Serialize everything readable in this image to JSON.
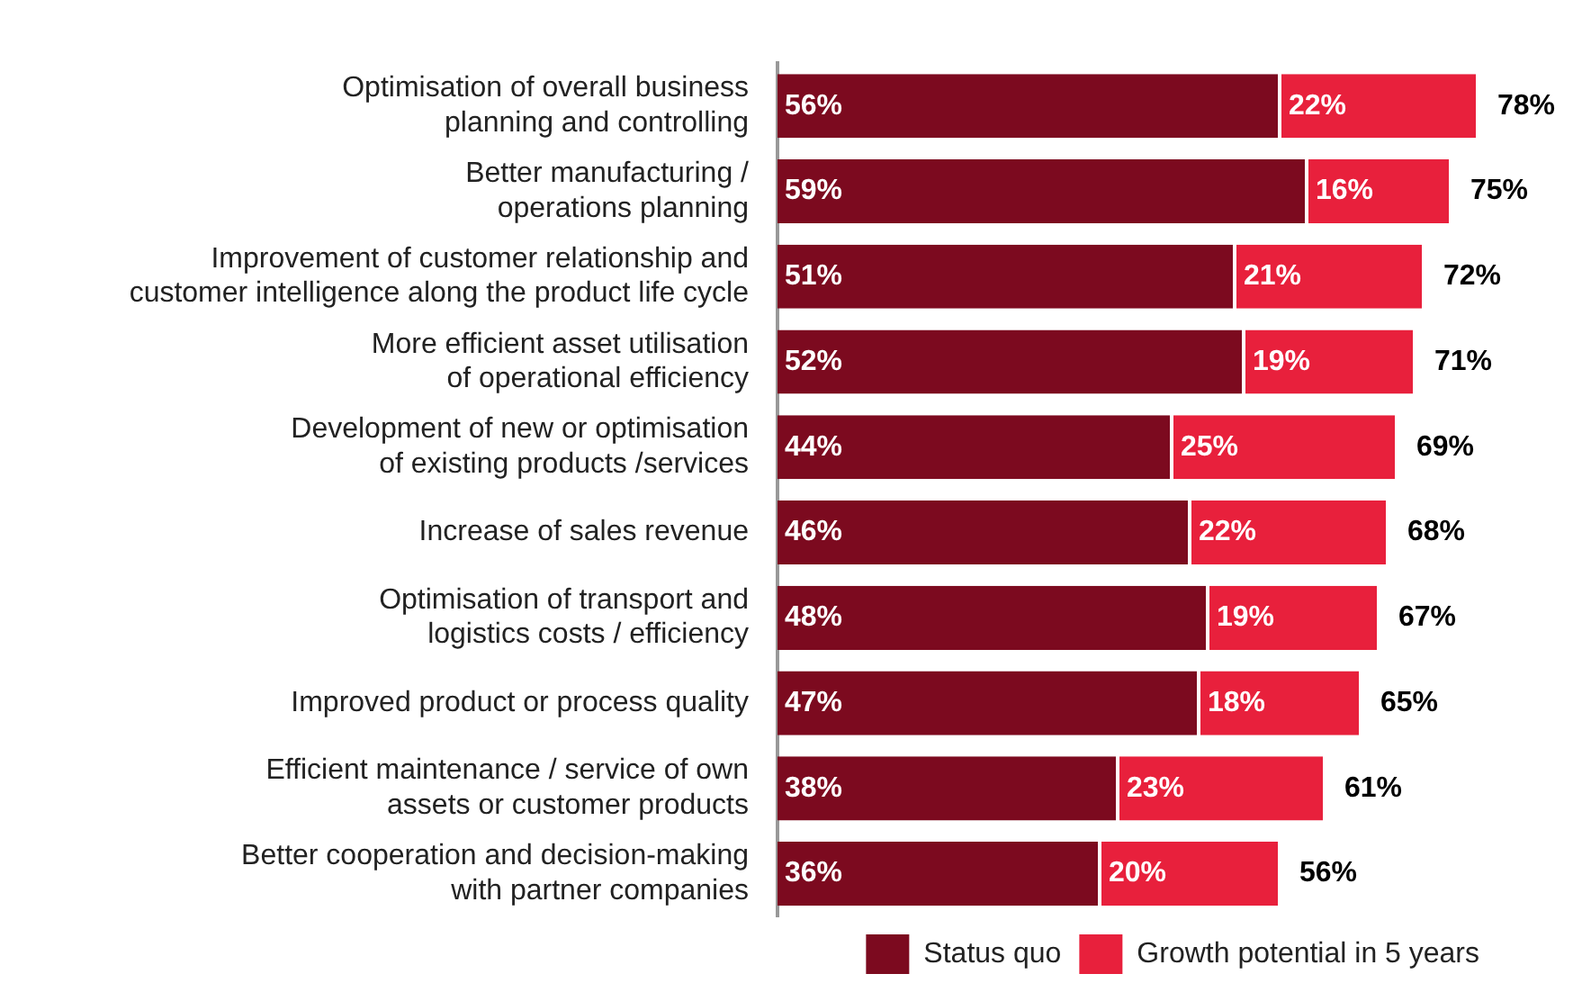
{
  "chart_data": {
    "type": "bar",
    "orientation": "horizontal",
    "stacked": true,
    "categories": [
      "Optimisation of overall business\nplanning and controlling",
      "Better manufacturing /\noperations planning",
      "Improvement of customer relationship and\ncustomer intelligence along the product life cycle",
      "More efficient asset utilisation\nof operational efficiency",
      "Development of new or optimisation\nof existing products /services",
      "Increase of sales revenue",
      "Optimisation of transport and\nlogistics costs / efficiency",
      "Improved product or process quality",
      "Efficient maintenance / service of own\nassets or customer products",
      "Better cooperation and decision-making\nwith partner companies"
    ],
    "series": [
      {
        "name": "Status quo",
        "color": "#7c0a1f",
        "values": [
          56,
          59,
          51,
          52,
          44,
          46,
          48,
          47,
          38,
          36
        ],
        "value_labels": [
          "56%",
          "59%",
          "51%",
          "52%",
          "44%",
          "46%",
          "48%",
          "47%",
          "38%",
          "36%"
        ]
      },
      {
        "name": "Growth potential in 5 years",
        "color": "#e8203c",
        "values": [
          22,
          16,
          21,
          19,
          25,
          22,
          19,
          18,
          23,
          20
        ],
        "value_labels": [
          "22%",
          "16%",
          "21%",
          "19%",
          "25%",
          "22%",
          "19%",
          "18%",
          "23%",
          "20%"
        ]
      }
    ],
    "totals": [
      "78%",
      "75%",
      "72%",
      "71%",
      "69%",
      "68%",
      "67%",
      "65%",
      "61%",
      "56%"
    ],
    "tick_labels": "y",
    "grid": false,
    "legend": "bottom right"
  }
}
